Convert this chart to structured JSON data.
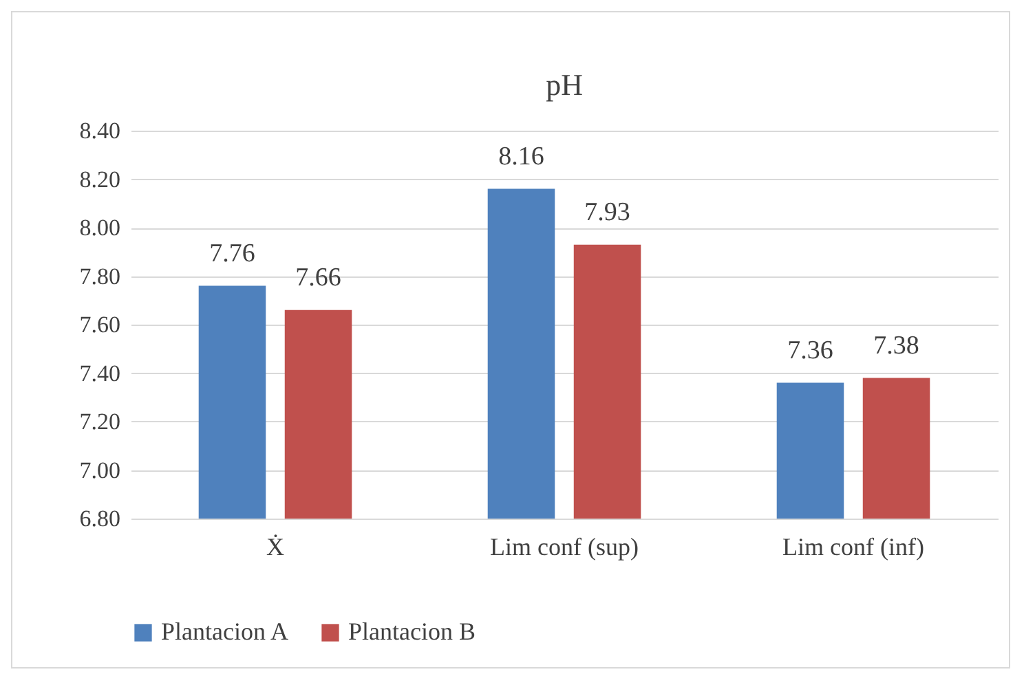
{
  "chart_data": {
    "type": "bar",
    "title": "pH",
    "categories": [
      "Ẋ",
      "Lim conf (sup)",
      "Lim conf (inf)"
    ],
    "series": [
      {
        "name": "Plantacion A",
        "color": "#4f81bd",
        "values": [
          7.76,
          8.16,
          7.36
        ]
      },
      {
        "name": "Plantacion B",
        "color": "#c0504d",
        "values": [
          7.66,
          7.93,
          7.38
        ]
      }
    ],
    "ylim": [
      6.8,
      8.4
    ],
    "yticks": [
      {
        "value": 6.8,
        "label": "6.80"
      },
      {
        "value": 7.0,
        "label": "7.00"
      },
      {
        "value": 7.2,
        "label": "7.20"
      },
      {
        "value": 7.4,
        "label": "7.40"
      },
      {
        "value": 7.6,
        "label": "7.60"
      },
      {
        "value": 7.8,
        "label": "7.80"
      },
      {
        "value": 8.0,
        "label": "8.00"
      },
      {
        "value": 8.2,
        "label": "8.20"
      },
      {
        "value": 8.4,
        "label": "8.40"
      }
    ],
    "grid": "y",
    "legend": "bottom",
    "data_labels": true
  }
}
